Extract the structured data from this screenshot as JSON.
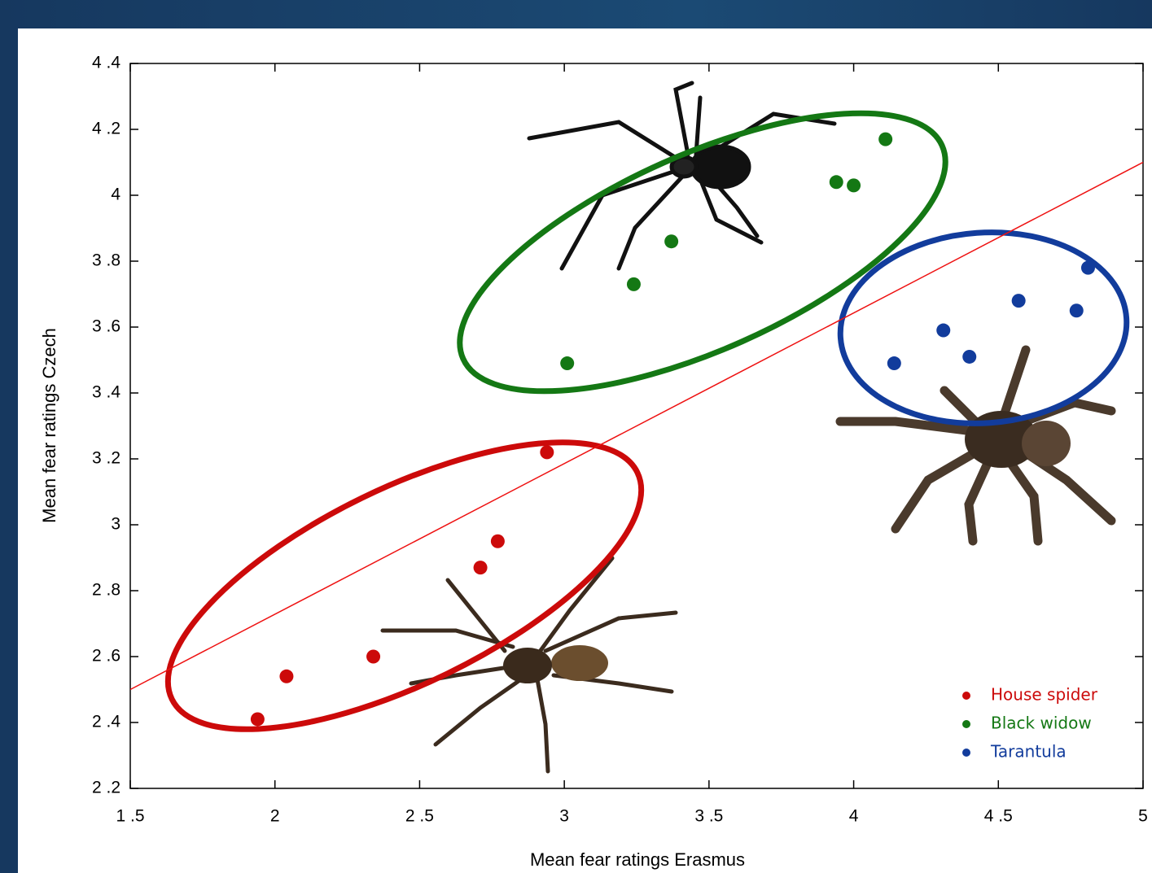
{
  "chart_data": {
    "type": "scatter",
    "xlabel": "Mean fear ratings Erasmus",
    "ylabel": "Mean fear ratings Czech",
    "xlim": [
      1.5,
      5
    ],
    "ylim": [
      2.2,
      4.4
    ],
    "xticks": [
      {
        "value": 1.5,
        "label": "1 .5"
      },
      2,
      {
        "value": 2.5,
        "label": "2 .5"
      },
      3,
      {
        "value": 3.5,
        "label": "3 .5"
      },
      4,
      {
        "value": 4.5,
        "label": "4 .5"
      },
      5
    ],
    "yticks": [
      {
        "value": 2.2,
        "label": "2 .2"
      },
      {
        "value": 2.4,
        "label": "2 .4"
      },
      {
        "value": 2.6,
        "label": "2 .6"
      },
      {
        "value": 2.8,
        "label": "2 .8"
      },
      3,
      {
        "value": 3.2,
        "label": "3 .2"
      },
      {
        "value": 3.4,
        "label": "3 .4"
      },
      {
        "value": 3.6,
        "label": "3 .6"
      },
      {
        "value": 3.8,
        "label": "3 .8"
      },
      4,
      {
        "value": 4.2,
        "label": "4 .2"
      },
      {
        "value": 4.4,
        "label": "4 .4"
      }
    ],
    "legend_position": "lower right",
    "series": [
      {
        "name": "House spider",
        "color": "#cc0a0a",
        "x": [
          1.94,
          2.04,
          2.34,
          2.71,
          2.77,
          2.94
        ],
        "values": [
          2.41,
          2.54,
          2.6,
          2.87,
          2.95,
          3.22
        ]
      },
      {
        "name": "Black widow",
        "color": "#147814",
        "x": [
          3.01,
          3.24,
          3.37,
          3.94,
          4.0,
          4.11
        ],
        "values": [
          3.49,
          3.73,
          3.86,
          4.04,
          4.03,
          4.17
        ]
      },
      {
        "name": "Tarantula",
        "color": "#123c9c",
        "x": [
          4.14,
          4.31,
          4.4,
          4.57,
          4.77,
          4.81
        ],
        "values": [
          3.49,
          3.59,
          3.51,
          3.68,
          3.65,
          3.78
        ]
      }
    ],
    "fit_line": {
      "color": "#ee1111",
      "x": [
        1.5,
        5
      ],
      "values": [
        2.5,
        4.1
      ]
    }
  }
}
